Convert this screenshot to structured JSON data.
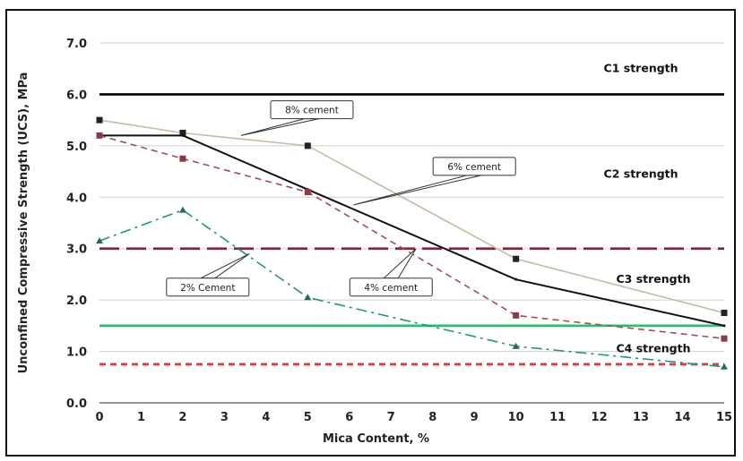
{
  "chart_data": {
    "type": "line",
    "title": "",
    "xlabel": "Mica Content, %",
    "ylabel": "Unconfined Compressive Strength (UCS), MPa",
    "xlim": [
      0,
      15
    ],
    "ylim": [
      0,
      7
    ],
    "x_ticks": [
      0,
      1,
      2,
      3,
      4,
      5,
      6,
      7,
      8,
      9,
      10,
      11,
      12,
      13,
      14,
      15
    ],
    "y_ticks": [
      "0.0",
      "1.0",
      "2.0",
      "3.0",
      "4.0",
      "5.0",
      "6.0",
      "7.0"
    ],
    "grid": "horizontal",
    "series": [
      {
        "name": "8% cement",
        "color": "#c9b8a4",
        "dash": "solid",
        "marker": "square",
        "marker_color": "#222222",
        "x": [
          0,
          2,
          5,
          10,
          15
        ],
        "y": [
          5.5,
          5.25,
          5.0,
          2.8,
          1.75
        ]
      },
      {
        "name": "6% cement",
        "color": "#111111",
        "dash": "solid",
        "marker": "none",
        "marker_color": "#111111",
        "x": [
          0,
          2,
          5,
          10,
          15
        ],
        "y": [
          5.2,
          5.2,
          4.15,
          2.4,
          1.5
        ]
      },
      {
        "name": "4% cement",
        "color": "#a44a55",
        "dash": "dashed",
        "marker": "square",
        "marker_color": "#8b3a46",
        "x": [
          0,
          2,
          5,
          10,
          15
        ],
        "y": [
          5.2,
          4.75,
          4.1,
          1.7,
          1.25
        ]
      },
      {
        "name": "2% Cement",
        "color": "#1f9a6a",
        "dash": "dashdot",
        "marker": "triangle",
        "marker_color": "#2a6a5a",
        "x": [
          0,
          2,
          5,
          10,
          15
        ],
        "y": [
          3.15,
          3.75,
          2.05,
          1.1,
          0.7
        ]
      }
    ],
    "reference_lines": [
      {
        "y": 6.0,
        "color": "#000000",
        "dash": "solid"
      },
      {
        "y": 3.0,
        "color": "#7a2a3a",
        "dash": "longdash"
      },
      {
        "y": 1.5,
        "color": "#2bbf6a",
        "dash": "solid"
      },
      {
        "y": 0.75,
        "color": "#e83a3a",
        "dash": "dashed"
      }
    ],
    "band_labels": [
      {
        "text": "C1 strength",
        "x": 13.0,
        "y": 6.5
      },
      {
        "text": "C2 strength",
        "x": 13.0,
        "y": 4.45
      },
      {
        "text": "C3 strength",
        "x": 13.3,
        "y": 2.4
      },
      {
        "text": "C4 strength",
        "x": 13.3,
        "y": 1.05
      }
    ],
    "callouts": [
      {
        "text": "8% cement",
        "box_x": 5.1,
        "box_y": 5.7,
        "target_x": 3.4,
        "target_y": 5.2
      },
      {
        "text": "6% cement",
        "box_x": 9.0,
        "box_y": 4.6,
        "target_x": 6.1,
        "target_y": 3.85
      },
      {
        "text": "2% Cement",
        "box_x": 2.6,
        "box_y": 2.25,
        "target_x": 3.6,
        "target_y": 2.9
      },
      {
        "text": "4% cement",
        "box_x": 7.0,
        "box_y": 2.25,
        "target_x": 7.6,
        "target_y": 3.0
      }
    ]
  }
}
